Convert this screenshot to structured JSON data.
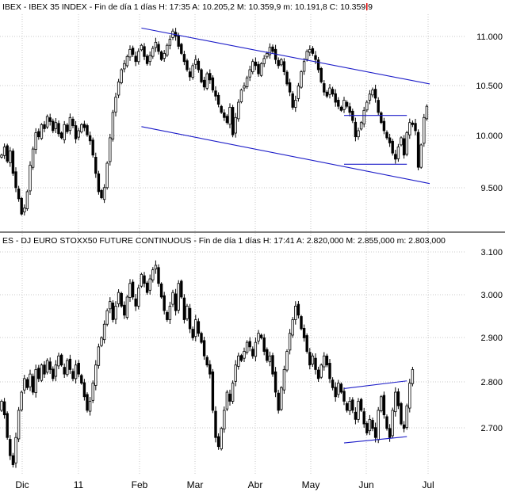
{
  "colors": {
    "candle": "#000000",
    "trendline": "#1c1cc8",
    "grid": "#c8c8c8",
    "accent_mark": "#e00000"
  },
  "chart_data": [
    {
      "type": "candlestick",
      "header": "IBEX - IBEX 35 INDEX - Fin de día 1 días  H: 17:35  A: 10.205,2  M: 10.359,9  m: 10.191,8  C: 10.359,9",
      "y_ticks": [
        "11.000",
        "10.500",
        "10.000",
        "9.500"
      ],
      "ylim": [
        9200,
        11250
      ],
      "x_ticks": [],
      "grid": "dotted",
      "series": [
        {
          "x": 0,
          "values": [
            9880,
            9960,
            9820,
            9920,
            9700,
            9560,
            9450,
            9300,
            9360,
            9520,
            9780,
            9940,
            10100,
            10060,
            10180,
            10140,
            10260,
            10210,
            10120,
            10200,
            10090,
            10050,
            10180,
            10110,
            10250,
            10170,
            10040,
            10120,
            10180,
            10150,
            10080,
            10020,
            9880,
            9700,
            9520,
            9460,
            9560,
            9800,
            10050,
            10300,
            10450,
            10600,
            10720,
            10780,
            10850,
            10920,
            10870,
            10800,
            10900,
            10960,
            10850,
            10780,
            10860,
            10930,
            10990,
            10900,
            10820,
            10880,
            10960,
            11020,
            11100,
            11050,
            10950,
            10880,
            10800,
            10720,
            10650,
            10760,
            10820,
            10720,
            10600,
            10550,
            10680,
            10620,
            10520,
            10460,
            10380,
            10300,
            10250,
            10200,
            10350,
            10080,
            10250,
            10400,
            10520,
            10560,
            10640,
            10720,
            10800,
            10760,
            10680,
            10780,
            10830,
            10880,
            10940,
            10900,
            10820,
            10760,
            10820,
            10700,
            10580,
            10500,
            10350,
            10420,
            10560,
            10700,
            10800,
            10900,
            10920,
            10880,
            10820,
            10720,
            10600,
            10500,
            10460,
            10540,
            10480,
            10400,
            10360,
            10320,
            10420,
            10360,
            10300,
            10220,
            10060,
            10120,
            10200,
            10320,
            10400,
            10480,
            10520,
            10440,
            10300,
            10200,
            10120,
            10050,
            10000,
            9900,
            9840,
            9960,
            10050,
            9880,
            10100,
            10200,
            10180,
            10120,
            9760,
            9980,
            10250,
            10360
          ]
        }
      ],
      "trendlines": [
        {
          "x0": 49,
          "y0": 11130,
          "x1": 150,
          "y1": 10580
        },
        {
          "x0": 49,
          "y0": 10160,
          "x1": 150,
          "y1": 9600
        },
        {
          "x0": 120,
          "y0": 10270,
          "x1": 142,
          "y1": 10270
        },
        {
          "x0": 120,
          "y0": 9790,
          "x1": 142,
          "y1": 9790
        }
      ]
    },
    {
      "type": "candlestick",
      "header": "ES - DJ EURO STOXX50 FUTURE CONTINUOUS - Fin de día 1 días  H: 17:41  A: 2.820,000  M: 2.855,000  m: 2.803,000",
      "y_ticks": [
        "3.100",
        "3.000",
        "2.900",
        "2.800",
        "2.700"
      ],
      "ylim": [
        2620,
        3120
      ],
      "x_ticks": [
        "Dic",
        "11",
        "Feb",
        "Mar",
        "Abr",
        "May",
        "Jun",
        "Jul"
      ],
      "grid": "dotted",
      "series": [
        {
          "x": 0,
          "values": [
            2780,
            2750,
            2700,
            2660,
            2640,
            2700,
            2760,
            2800,
            2830,
            2810,
            2840,
            2800,
            2850,
            2830,
            2860,
            2840,
            2870,
            2850,
            2830,
            2860,
            2880,
            2860,
            2840,
            2870,
            2850,
            2830,
            2860,
            2840,
            2820,
            2790,
            2760,
            2780,
            2820,
            2860,
            2900,
            2920,
            2950,
            2980,
            3000,
            2960,
            2990,
            3020,
            2990,
            2970,
            3010,
            3040,
            3010,
            2990,
            3030,
            3060,
            3040,
            3020,
            3050,
            3070,
            3080,
            3040,
            3010,
            2980,
            2960,
            2990,
            3020,
            2980,
            3040,
            3010,
            2960,
            2990,
            2940,
            2920,
            2960,
            2930,
            2910,
            2880,
            2860,
            2840,
            2760,
            2700,
            2680,
            2720,
            2760,
            2800,
            2780,
            2820,
            2860,
            2880,
            2870,
            2890,
            2910,
            2900,
            2880,
            2910,
            2930,
            2920,
            2890,
            2870,
            2880,
            2840,
            2800,
            2760,
            2810,
            2850,
            2890,
            2930,
            2960,
            2990,
            2970,
            2940,
            2920,
            2890,
            2860,
            2880,
            2850,
            2830,
            2860,
            2880,
            2860,
            2830,
            2810,
            2790,
            2820,
            2800,
            2780,
            2760,
            2780,
            2760,
            2740,
            2780,
            2760,
            2730,
            2710,
            2740,
            2720,
            2700,
            2760,
            2790,
            2750,
            2720,
            2700,
            2760,
            2800,
            2770,
            2730,
            2720,
            2770,
            2820,
            2850
          ]
        }
      ],
      "trendlines": [
        {
          "x0": 120,
          "y0": 2808,
          "x1": 142,
          "y1": 2825
        },
        {
          "x0": 120,
          "y0": 2688,
          "x1": 142,
          "y1": 2702
        }
      ]
    }
  ]
}
